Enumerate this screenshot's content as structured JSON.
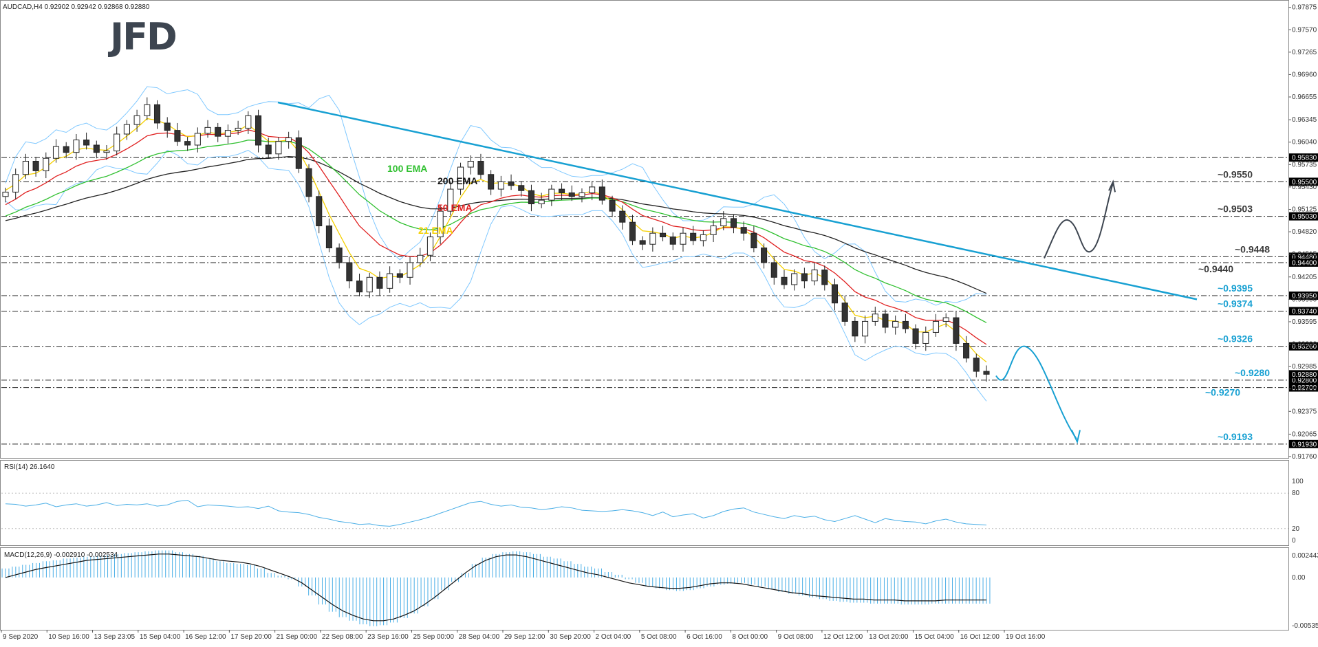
{
  "header": {
    "symbol_text": "AUDCAD,H4  0.92902 0.92942 0.92868 0.92880"
  },
  "logo_text": "JFD",
  "colors": {
    "bull_body": "#ffffff",
    "bear_body": "#333333",
    "candle_outline": "#222222",
    "ema21": "#f5d000",
    "ema50": "#e02020",
    "ema100": "#30c030",
    "ema200": "#222222",
    "bollinger": "#7fc8ff",
    "trendline": "#17a0d2",
    "level_line": "#222222",
    "label_blue": "#17a0d2",
    "label_dark": "#3a3a3a",
    "rsi_line": "#49aee6",
    "macd_hist": "#49aee6",
    "macd_signal": "#111111",
    "projection": "#17a0d2",
    "projection_up": "#3d4550"
  },
  "chart_data": [
    {
      "type": "candlestick",
      "title": "AUDCAD,H4",
      "y_ticks": [
        "0.97875",
        "0.97570",
        "0.97265",
        "0.96960",
        "0.96655",
        "0.96345",
        "0.96040",
        "0.95735",
        "0.95430",
        "0.95125",
        "0.94820",
        "0.94515",
        "0.94205",
        "0.93900",
        "0.93595",
        "0.93290",
        "0.92985",
        "0.92680",
        "0.92375",
        "0.92065",
        "0.91760"
      ],
      "ylim": [
        0.9176,
        0.979
      ],
      "x_tick_labels": [
        "9 Sep 2020",
        "10 Sep 16:00",
        "13 Sep 23:05",
        "15 Sep 04:00",
        "16 Sep 12:00",
        "17 Sep 20:00",
        "21 Sep 00:00",
        "22 Sep 08:00",
        "23 Sep 16:00",
        "25 Sep 00:00",
        "28 Sep 04:00",
        "29 Sep 12:00",
        "30 Sep 20:00",
        "2 Oct 04:00",
        "5 Oct 08:00",
        "6 Oct 16:00",
        "8 Oct 00:00",
        "9 Oct 08:00",
        "12 Oct 12:00",
        "13 Oct 20:00",
        "15 Oct 04:00",
        "16 Oct 12:00",
        "19 Oct 16:00"
      ],
      "close_path": [
        0.9536,
        0.956,
        0.9578,
        0.9565,
        0.9582,
        0.9598,
        0.959,
        0.9607,
        0.96,
        0.959,
        0.9592,
        0.9615,
        0.9628,
        0.964,
        0.9655,
        0.963,
        0.962,
        0.9605,
        0.96,
        0.9616,
        0.9624,
        0.9612,
        0.962,
        0.9623,
        0.964,
        0.96,
        0.9588,
        0.9605,
        0.961,
        0.9568,
        0.953,
        0.949,
        0.946,
        0.944,
        0.9415,
        0.94,
        0.942,
        0.9405,
        0.9425,
        0.942,
        0.944,
        0.945,
        0.9475,
        0.951,
        0.954,
        0.957,
        0.9578,
        0.956,
        0.954,
        0.955,
        0.9545,
        0.9538,
        0.952,
        0.9525,
        0.954,
        0.9535,
        0.953,
        0.9535,
        0.9543,
        0.9525,
        0.951,
        0.9495,
        0.947,
        0.9465,
        0.948,
        0.9475,
        0.9465,
        0.948,
        0.947,
        0.9478,
        0.949,
        0.95,
        0.9488,
        0.948,
        0.946,
        0.944,
        0.942,
        0.941,
        0.9425,
        0.9415,
        0.943,
        0.941,
        0.9385,
        0.936,
        0.934,
        0.936,
        0.937,
        0.9352,
        0.936,
        0.935,
        0.933,
        0.9345,
        0.936,
        0.9365,
        0.933,
        0.931,
        0.9292,
        0.9288
      ],
      "ema_labels": [
        "100 EMA",
        "200 EMA",
        "50 EMA",
        "21 EMA"
      ],
      "levels": [
        {
          "value": 0.9583,
          "box": "0.95830",
          "label": "",
          "label_color": "dark"
        },
        {
          "value": 0.955,
          "box": "0.95500",
          "label": "~0.9550",
          "label_color": "dark"
        },
        {
          "value": 0.9503,
          "box": "0.95030",
          "label": "~0.9503",
          "label_color": "dark"
        },
        {
          "value": 0.9448,
          "box": "0.94480",
          "label": "~0.9448",
          "label_color": "dark"
        },
        {
          "value": 0.944,
          "box": "0.94400",
          "label": "~0.9440",
          "label_color": "dark"
        },
        {
          "value": 0.9395,
          "box": "0.93950",
          "label": "~0.9395",
          "label_color": "blue"
        },
        {
          "value": 0.9374,
          "box": "0.93740",
          "label": "~0.9374",
          "label_color": "blue"
        },
        {
          "value": 0.9326,
          "box": "0.93260",
          "label": "~0.9326",
          "label_color": "blue"
        },
        {
          "value": 0.928,
          "box": "0.92800",
          "label": "~0.9280",
          "label_color": "blue"
        },
        {
          "value": 0.927,
          "box": "0.92700",
          "label": "~0.9270",
          "label_color": "blue"
        },
        {
          "value": 0.9193,
          "box": "0.91930",
          "label": "~0.9193",
          "label_color": "blue"
        }
      ],
      "current_price_box": "0.92880"
    },
    {
      "type": "line",
      "title": "RSI(14) 26.1640",
      "ylim": [
        0,
        100
      ],
      "y_ticks": [
        "100",
        "80",
        "20",
        "0"
      ],
      "values": [
        62,
        61,
        58,
        60,
        63,
        57,
        60,
        62,
        58,
        60,
        64,
        59,
        61,
        60,
        62,
        58,
        60,
        66,
        68,
        57,
        60,
        59,
        58,
        56,
        57,
        54,
        58,
        50,
        48,
        47,
        44,
        39,
        36,
        32,
        30,
        27,
        28,
        25,
        24,
        27,
        31,
        35,
        40,
        46,
        52,
        58,
        64,
        66,
        61,
        58,
        60,
        56,
        55,
        52,
        54,
        57,
        55,
        51,
        50,
        49,
        50,
        52,
        50,
        47,
        42,
        48,
        40,
        43,
        45,
        38,
        42,
        49,
        53,
        55,
        48,
        44,
        40,
        37,
        42,
        39,
        41,
        35,
        32,
        37,
        42,
        36,
        30,
        37,
        34,
        32,
        31,
        28,
        33,
        36,
        31,
        28,
        27,
        26
      ]
    },
    {
      "type": "bar",
      "title": "MACD(12,26,9) -0.002910 -0.002534",
      "ylim": [
        -0.00535,
        0.00243
      ],
      "y_ticks": [
        "0.002443",
        "0.00",
        "-0.00535"
      ],
      "histogram": [
        0.001,
        0.0012,
        0.0014,
        0.0016,
        0.0018,
        0.0019,
        0.0021,
        0.0022,
        0.0023,
        0.0024,
        0.0025,
        0.0026,
        0.0027,
        0.0028,
        0.0029,
        0.003,
        0.003,
        0.0028,
        0.0026,
        0.0024,
        0.0021,
        0.0018,
        0.0016,
        0.0015,
        0.0014,
        0.001,
        0.0005,
        0.0002,
        -0.0002,
        -0.001,
        -0.002,
        -0.003,
        -0.0038,
        -0.0044,
        -0.0048,
        -0.0052,
        -0.0054,
        -0.0053,
        -0.005,
        -0.0045,
        -0.004,
        -0.0032,
        -0.0024,
        -0.0014,
        -0.0005,
        0.0005,
        0.0015,
        0.0022,
        0.0026,
        0.0028,
        0.0029,
        0.0028,
        0.0026,
        0.0023,
        0.0021,
        0.0018,
        0.0015,
        0.0012,
        0.001,
        0.0006,
        0.0003,
        -0.0002,
        -0.0006,
        -0.001,
        -0.0012,
        -0.0014,
        -0.0015,
        -0.0014,
        -0.0012,
        -0.001,
        -0.0008,
        -0.0007,
        -0.0006,
        -0.0008,
        -0.001,
        -0.0013,
        -0.0016,
        -0.0018,
        -0.002,
        -0.0022,
        -0.0024,
        -0.0026,
        -0.0027,
        -0.0028,
        -0.0028,
        -0.0029,
        -0.0029,
        -0.0029,
        -0.003,
        -0.003,
        -0.003,
        -0.0029,
        -0.0029,
        -0.0029,
        -0.0029,
        -0.0029,
        -0.0029
      ],
      "signal": [
        0.0,
        0.0003,
        0.0006,
        0.0009,
        0.0011,
        0.0013,
        0.0015,
        0.0017,
        0.0019,
        0.002,
        0.0021,
        0.0022,
        0.0023,
        0.0024,
        0.0025,
        0.0026,
        0.0026,
        0.0025,
        0.0024,
        0.0023,
        0.0021,
        0.0019,
        0.0018,
        0.0017,
        0.0015,
        0.0012,
        0.0008,
        0.0004,
        0.0,
        -0.0006,
        -0.0014,
        -0.0022,
        -0.003,
        -0.0037,
        -0.0042,
        -0.0046,
        -0.0048,
        -0.0048,
        -0.0046,
        -0.0042,
        -0.0037,
        -0.003,
        -0.0022,
        -0.0013,
        -0.0004,
        0.0005,
        0.0013,
        0.0019,
        0.0023,
        0.0025,
        0.0025,
        0.0023,
        0.002,
        0.0017,
        0.0014,
        0.0011,
        0.0008,
        0.0005,
        0.0003,
        0.0,
        -0.0003,
        -0.0006,
        -0.0008,
        -0.001,
        -0.0011,
        -0.0012,
        -0.0012,
        -0.0011,
        -0.0009,
        -0.0007,
        -0.0006,
        -0.0006,
        -0.0007,
        -0.0009,
        -0.0011,
        -0.0013,
        -0.0015,
        -0.0017,
        -0.0018,
        -0.002,
        -0.0021,
        -0.0022,
        -0.0023,
        -0.0024,
        -0.0024,
        -0.0025,
        -0.0025,
        -0.0025,
        -0.0026,
        -0.0026,
        -0.0026,
        -0.0026,
        -0.0025,
        -0.0025,
        -0.0025,
        -0.0025,
        -0.0025
      ]
    }
  ]
}
